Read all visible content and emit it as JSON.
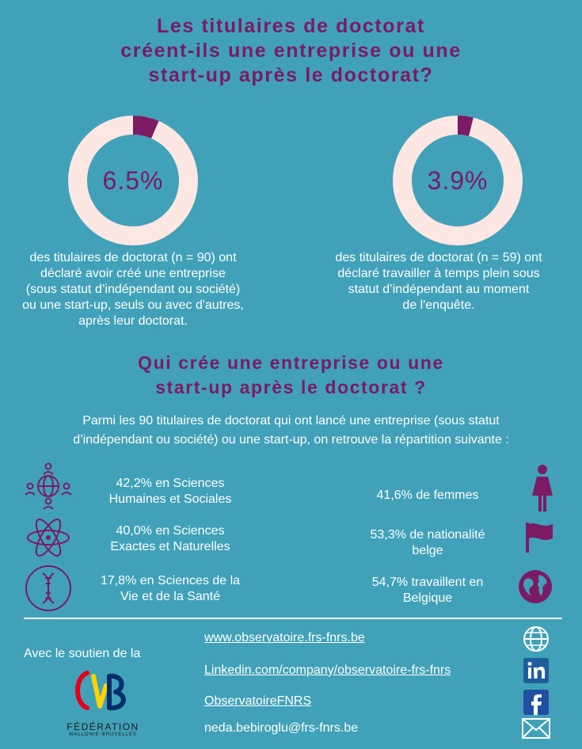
{
  "header": {
    "title": "Les titulaires de doctorat\ncréent-ils une entreprise ou une\nstart-up après le doctorat?"
  },
  "donuts": [
    {
      "value_label": "6.5%",
      "fraction": 0.065,
      "description": "des titulaires de doctorat (n = 90) ont\ndéclaré avoir créé une entreprise\n(sous statut d’indépendant ou société)\nou une start-up, seuls ou avec d'autres,\naprès leur doctorat."
    },
    {
      "value_label": "3.9%",
      "fraction": 0.039,
      "description": "des titulaires de doctorat (n = 59) ont\ndéclaré travailler à temps plein sous\nstatut d’indépendant au moment\nde l'enquête."
    }
  ],
  "section2": {
    "title": "Qui crée une entreprise ou une\nstart-up après le doctorat ?",
    "intro": "Parmi les 90 titulaires de doctorat qui ont lancé une entreprise (sous statut\nd’indépendant ou société) ou une start-up, on retrouve la répartition suivante :"
  },
  "left_stats": [
    {
      "text": "42,2% en Sciences\nHumaines et Sociales",
      "icon": "people-globe-icon"
    },
    {
      "text": "40,0% en Sciences\nExactes et Naturelles",
      "icon": "atom-icon"
    },
    {
      "text": "17,8% en Sciences de la\nVie et de la Santé",
      "icon": "dna-icon"
    }
  ],
  "right_stats": [
    {
      "text": "41,6% de femmes",
      "icon": "woman-icon"
    },
    {
      "text": "53,3% de nationalité\nbelge",
      "icon": "flag-icon"
    },
    {
      "text": "54,7% travaillent en\nBelgique",
      "icon": "earth-icon"
    }
  ],
  "footer": {
    "support_text": "Avec le soutien de la",
    "logo_text": "FÉDÉRATION",
    "logo_subtext": "WALLONIE-BRUXELLES",
    "links": [
      {
        "text": "www.observatoire.frs-fnrs.be",
        "icon": "globe-icon"
      },
      {
        "text": "Linkedin.com/company/observatoire-frs-fnrs",
        "icon": "linkedin-icon"
      },
      {
        "text": "ObservatoireFNRS",
        "icon": "facebook-icon"
      },
      {
        "text": "neda.bebiroglu@frs-fnrs.be",
        "icon": "mail-icon"
      }
    ]
  },
  "colors": {
    "background": "#41a1b9",
    "accent": "#7a1b64",
    "ring": "#fde7e2"
  }
}
